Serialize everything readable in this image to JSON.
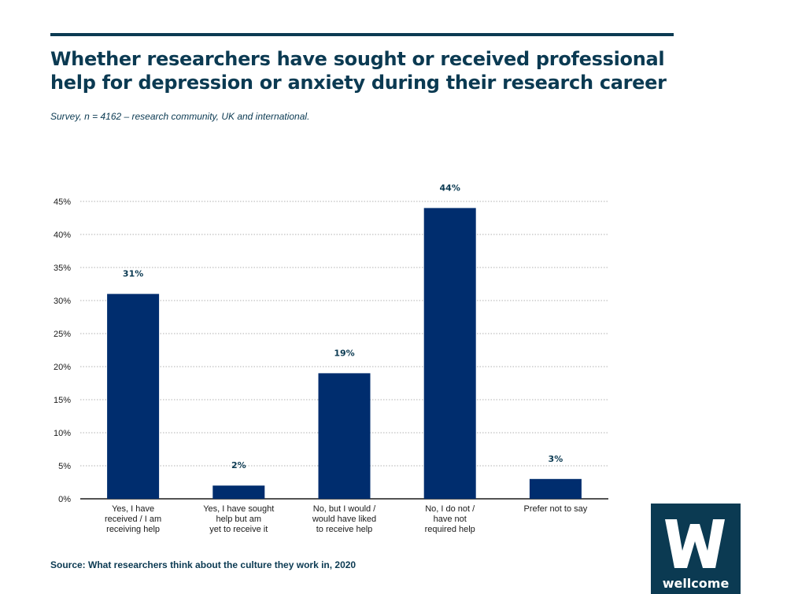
{
  "header": {
    "title": "Whether researchers have sought or received professional help for depression or anxiety during their research career",
    "subtitle": "Survey, n = 4162 – research community, UK and international."
  },
  "footer": {
    "source": "Source: What researchers think about the culture they work in, 2020"
  },
  "logo": {
    "text": "wellcome"
  },
  "colors": {
    "bar": "#002d6e",
    "text": "#0b3a52",
    "grid": "#999999",
    "axis": "#1a1a1a"
  },
  "chart_data": {
    "type": "bar",
    "categories": [
      [
        "Yes, I have",
        "received / I am",
        "receiving help"
      ],
      [
        "Yes, I have sought",
        "help but am",
        "yet to receive it"
      ],
      [
        "No, but I would /",
        "would have liked",
        "to receive help"
      ],
      [
        "No, I do not /",
        "have not",
        "required help"
      ],
      [
        "Prefer not to say"
      ]
    ],
    "values": [
      31,
      2,
      19,
      44,
      3
    ],
    "data_labels": [
      "31%",
      "2%",
      "19%",
      "44%",
      "3%"
    ],
    "yticks": [
      0,
      5,
      10,
      15,
      20,
      25,
      30,
      35,
      40,
      45
    ],
    "ytick_labels": [
      "0%",
      "5%",
      "10%",
      "15%",
      "20%",
      "25%",
      "30%",
      "35%",
      "40%",
      "45%"
    ],
    "ylim": [
      0,
      45
    ],
    "title": "Whether researchers have sought or received professional help for depression or anxiety during their research career",
    "xlabel": "",
    "ylabel": ""
  }
}
